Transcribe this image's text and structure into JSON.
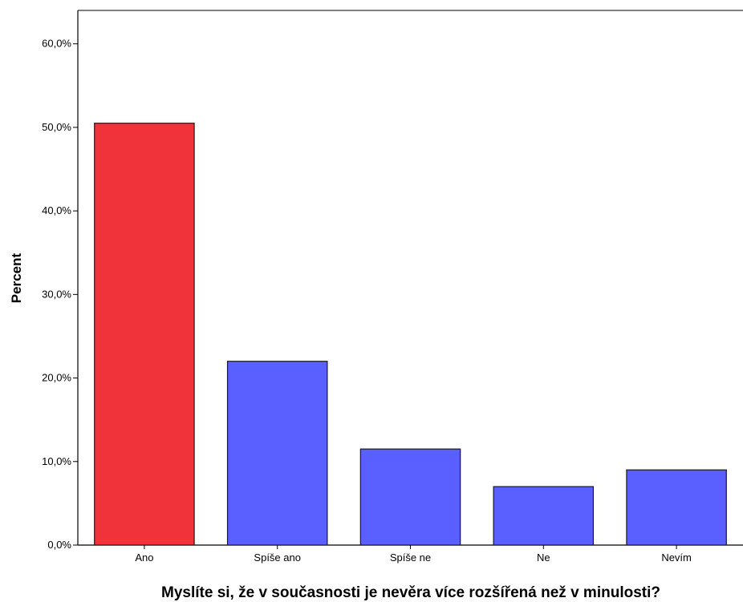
{
  "chart_data": {
    "type": "bar",
    "title": "",
    "xlabel": "Myslíte si, že v současnosti je nevěra více rozšířená než v minulosti?",
    "ylabel": "Percent",
    "ylim": [
      0,
      64
    ],
    "yticks": [
      0,
      10,
      20,
      30,
      40,
      50,
      60
    ],
    "ytick_labels": [
      "0,0%",
      "10,0%",
      "20,0%",
      "30,0%",
      "40,0%",
      "50,0%",
      "60,0%"
    ],
    "categories": [
      "Ano",
      "Spíše ano",
      "Spíše ne",
      "Ne",
      "Nevím"
    ],
    "values": [
      50.5,
      22.0,
      11.5,
      7.0,
      9.0
    ],
    "bar_colors": [
      "#f0323a",
      "#5a5fff",
      "#5a5fff",
      "#5a5fff",
      "#5a5fff"
    ],
    "grid": false,
    "legend": "none"
  }
}
